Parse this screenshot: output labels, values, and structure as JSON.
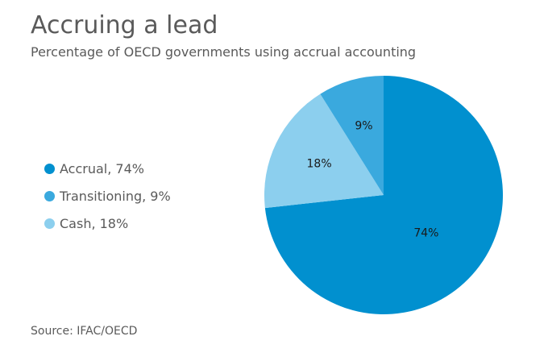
{
  "chart_data": {
    "type": "pie",
    "title": "Accruing a lead",
    "subtitle": "Percentage of OECD governments using accrual accounting",
    "source": "Source: IFAC/OECD",
    "categories": [
      "Accrual",
      "Transitioning",
      "Cash"
    ],
    "values": [
      74,
      9,
      18
    ],
    "slice_labels": [
      "74%",
      "9%",
      "18%"
    ],
    "legend_labels": [
      "Accrual, 74%",
      "Transitioning, 9%",
      "Cash, 18%"
    ],
    "colors": [
      "#0190cf",
      "#3aa9de",
      "#8ccfee"
    ],
    "legend_position": "left"
  }
}
